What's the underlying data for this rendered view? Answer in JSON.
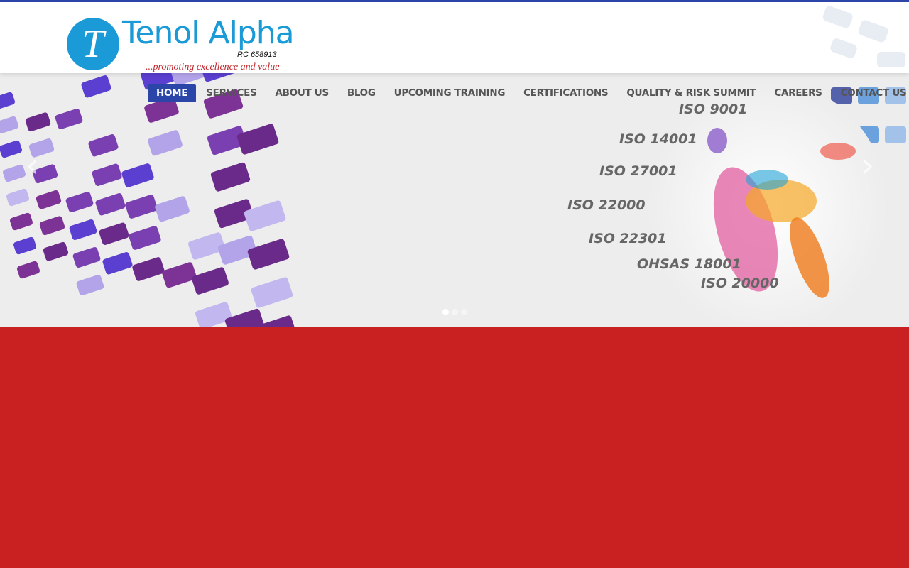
{
  "brand": {
    "logo_letter": "T",
    "name": "Tenol Alpha",
    "rc": "RC 658913",
    "tagline": "...promoting excellence and value"
  },
  "nav": {
    "items": [
      {
        "label": "HOME",
        "active": true
      },
      {
        "label": "SERVICES"
      },
      {
        "label": "ABOUT US"
      },
      {
        "label": "BLOG"
      },
      {
        "label": "UPCOMING TRAINING"
      },
      {
        "label": "CERTIFICATIONS"
      },
      {
        "label": "QUALITY & RISK SUMMIT"
      },
      {
        "label": "CAREERS"
      },
      {
        "label": "CONTACT US"
      }
    ]
  },
  "slider": {
    "standards": [
      "ISO 9001",
      "ISO 14001",
      "ISO 27001",
      "ISO 22000",
      "ISO 22301",
      "OHSAS 18001",
      "ISO 20000"
    ],
    "prev_icon": "chevron-left-icon",
    "next_icon": "chevron-right-icon",
    "slide_count": 3,
    "active_slide": 1
  },
  "colors": {
    "accent": "#2b46a8",
    "brand_blue": "#1a9ad6",
    "main_bg": "#c92022"
  }
}
